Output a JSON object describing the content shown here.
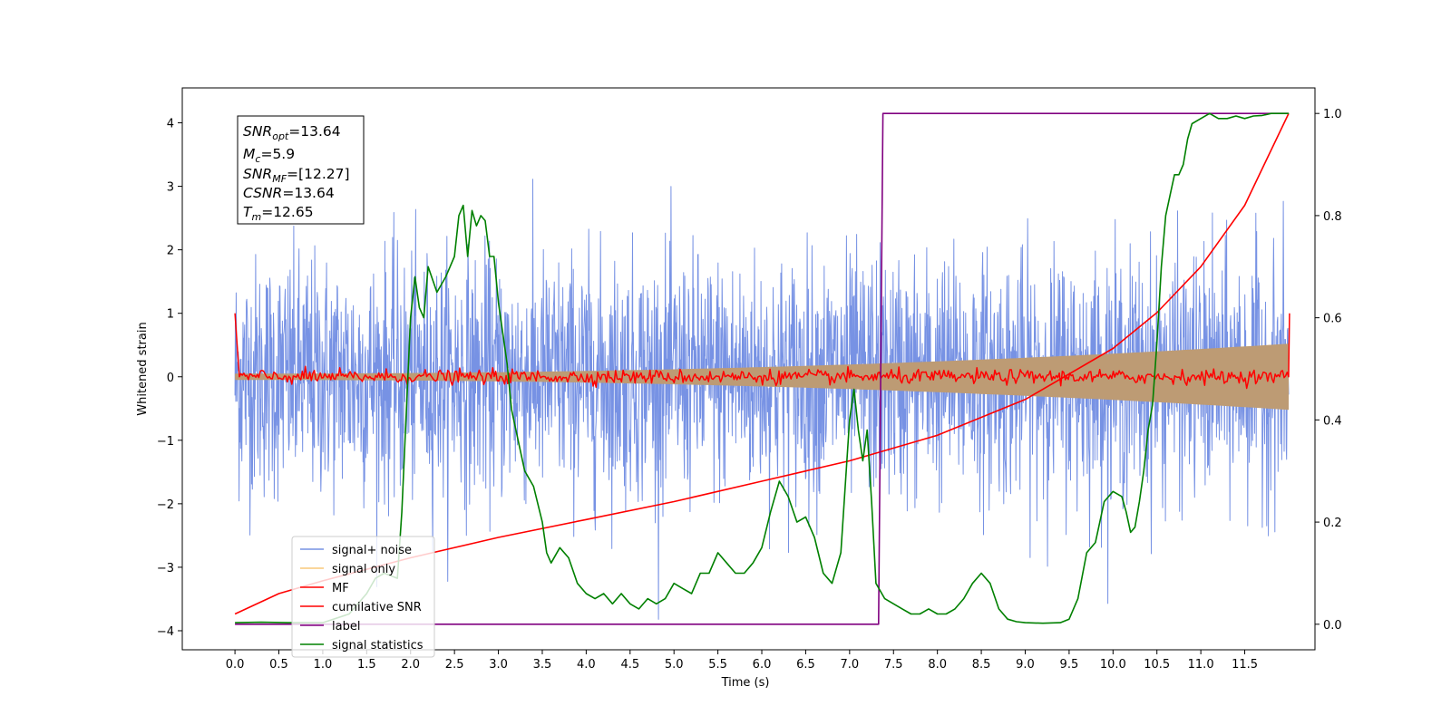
{
  "chart_data": {
    "type": "line",
    "xlabel": "Time (s)",
    "ylabel": "Whitened strain",
    "xlim": [
      -0.6,
      12.3
    ],
    "ylim": [
      -4.3,
      4.55
    ],
    "y2lim": [
      -0.05,
      1.05
    ],
    "x_ticks": [
      0.0,
      0.5,
      1.0,
      1.5,
      2.0,
      2.5,
      3.0,
      3.5,
      4.0,
      4.5,
      5.0,
      5.5,
      6.0,
      6.5,
      7.0,
      7.5,
      8.0,
      8.5,
      9.0,
      9.5,
      10.0,
      10.5,
      11.0,
      11.5
    ],
    "x_tick_labels": [
      "0.0",
      "0.5",
      "1.0",
      "1.5",
      "2.0",
      "2.5",
      "3.0",
      "3.5",
      "4.0",
      "4.5",
      "5.0",
      "5.5",
      "6.0",
      "6.5",
      "7.0",
      "7.5",
      "8.0",
      "8.5",
      "9.0",
      "9.5",
      "10.0",
      "10.5",
      "11.0",
      "11.5"
    ],
    "y_ticks": [
      -4,
      -3,
      -2,
      -1,
      0,
      1,
      2,
      3,
      4
    ],
    "y_tick_labels": [
      "−4",
      "−3",
      "−2",
      "−1",
      "0",
      "1",
      "2",
      "3",
      "4"
    ],
    "y2_ticks": [
      0.0,
      0.2,
      0.4,
      0.6,
      0.8,
      1.0
    ],
    "y2_tick_labels": [
      "0.0",
      "0.2",
      "0.4",
      "0.6",
      "0.8",
      "1.0"
    ],
    "grid": false,
    "legend_position": "bottom-left",
    "stats_box": {
      "snr_opt": "13.64",
      "mc": "5.9",
      "snr_mf": "[12.27]",
      "csnr": "13.64",
      "tm": "12.65"
    },
    "series": [
      {
        "name": "signal+ noise",
        "color": "#7792e4",
        "axis": "left",
        "x_range": [
          0.0,
          12.0
        ],
        "amplitude_typical": 2.2,
        "amplitude_peak": 4.15
      },
      {
        "name": "signal only",
        "color": "#f8c87a",
        "axis": "left",
        "x_range": [
          0.0,
          12.0
        ],
        "envelope_start": 0.05,
        "envelope_end": 0.52
      },
      {
        "name": "MF",
        "color": "#ff0000",
        "axis": "left",
        "x": [
          0.0,
          0.05,
          12.0,
          12.01
        ],
        "y": [
          1.0,
          0.0,
          0.0,
          1.0
        ]
      },
      {
        "name": "cumilative SNR",
        "color": "#ff0000",
        "axis": "right",
        "x": [
          0.0,
          0.5,
          1.0,
          2.0,
          3.0,
          4.0,
          5.0,
          6.0,
          7.0,
          8.0,
          9.0,
          10.0,
          10.5,
          11.0,
          11.5,
          12.0
        ],
        "y": [
          0.02,
          0.06,
          0.085,
          0.13,
          0.17,
          0.205,
          0.24,
          0.28,
          0.32,
          0.37,
          0.44,
          0.54,
          0.61,
          0.7,
          0.82,
          1.0
        ]
      },
      {
        "name": "label",
        "color": "#800080",
        "axis": "right",
        "x": [
          0.0,
          7.33,
          7.33,
          7.38,
          12.0
        ],
        "y": [
          0.0,
          0.0,
          0.0,
          1.0,
          1.0
        ]
      },
      {
        "name": "signal statistics",
        "color": "#008000",
        "axis": "right",
        "x": [
          0.0,
          0.3,
          0.6,
          1.0,
          1.3,
          1.5,
          1.6,
          1.7,
          1.85,
          1.9,
          2.0,
          2.05,
          2.1,
          2.15,
          2.2,
          2.3,
          2.4,
          2.45,
          2.5,
          2.55,
          2.6,
          2.65,
          2.7,
          2.75,
          2.8,
          2.85,
          2.9,
          2.95,
          3.0,
          3.05,
          3.1,
          3.15,
          3.2,
          3.3,
          3.4,
          3.5,
          3.55,
          3.6,
          3.7,
          3.8,
          3.9,
          4.0,
          4.1,
          4.2,
          4.3,
          4.4,
          4.5,
          4.6,
          4.7,
          4.8,
          4.9,
          5.0,
          5.1,
          5.2,
          5.3,
          5.4,
          5.5,
          5.6,
          5.7,
          5.8,
          5.9,
          6.0,
          6.1,
          6.2,
          6.3,
          6.4,
          6.5,
          6.6,
          6.7,
          6.8,
          6.9,
          7.0,
          7.05,
          7.1,
          7.15,
          7.2,
          7.25,
          7.3,
          7.4,
          7.5,
          7.6,
          7.7,
          7.8,
          7.9,
          8.0,
          8.1,
          8.2,
          8.3,
          8.4,
          8.5,
          8.6,
          8.7,
          8.8,
          8.9,
          9.0,
          9.2,
          9.4,
          9.5,
          9.6,
          9.7,
          9.8,
          9.9,
          10.0,
          10.1,
          10.15,
          10.2,
          10.25,
          10.3,
          10.35,
          10.4,
          10.45,
          10.5,
          10.55,
          10.6,
          10.65,
          10.7,
          10.75,
          10.8,
          10.85,
          10.9,
          11.0,
          11.1,
          11.2,
          11.3,
          11.4,
          11.5,
          11.6,
          11.7,
          11.8,
          11.9,
          12.0
        ],
        "y": [
          0.003,
          0.004,
          0.003,
          0.003,
          0.02,
          0.06,
          0.09,
          0.1,
          0.09,
          0.22,
          0.6,
          0.68,
          0.62,
          0.6,
          0.7,
          0.65,
          0.68,
          0.7,
          0.72,
          0.8,
          0.82,
          0.72,
          0.81,
          0.78,
          0.8,
          0.79,
          0.72,
          0.72,
          0.63,
          0.57,
          0.51,
          0.42,
          0.38,
          0.3,
          0.27,
          0.2,
          0.14,
          0.12,
          0.15,
          0.13,
          0.08,
          0.06,
          0.05,
          0.06,
          0.04,
          0.06,
          0.04,
          0.03,
          0.05,
          0.04,
          0.05,
          0.08,
          0.07,
          0.06,
          0.1,
          0.1,
          0.14,
          0.12,
          0.1,
          0.1,
          0.12,
          0.15,
          0.22,
          0.28,
          0.25,
          0.2,
          0.21,
          0.17,
          0.1,
          0.08,
          0.14,
          0.4,
          0.46,
          0.38,
          0.32,
          0.38,
          0.24,
          0.08,
          0.05,
          0.04,
          0.03,
          0.02,
          0.02,
          0.03,
          0.02,
          0.02,
          0.03,
          0.05,
          0.08,
          0.1,
          0.08,
          0.03,
          0.01,
          0.005,
          0.003,
          0.002,
          0.003,
          0.01,
          0.05,
          0.14,
          0.16,
          0.24,
          0.26,
          0.25,
          0.22,
          0.18,
          0.19,
          0.24,
          0.3,
          0.38,
          0.43,
          0.55,
          0.7,
          0.8,
          0.84,
          0.88,
          0.88,
          0.9,
          0.95,
          0.98,
          0.99,
          1.0,
          0.99,
          0.99,
          0.995,
          0.99,
          0.995,
          0.996,
          1.0,
          1.0,
          1.0
        ]
      }
    ]
  }
}
